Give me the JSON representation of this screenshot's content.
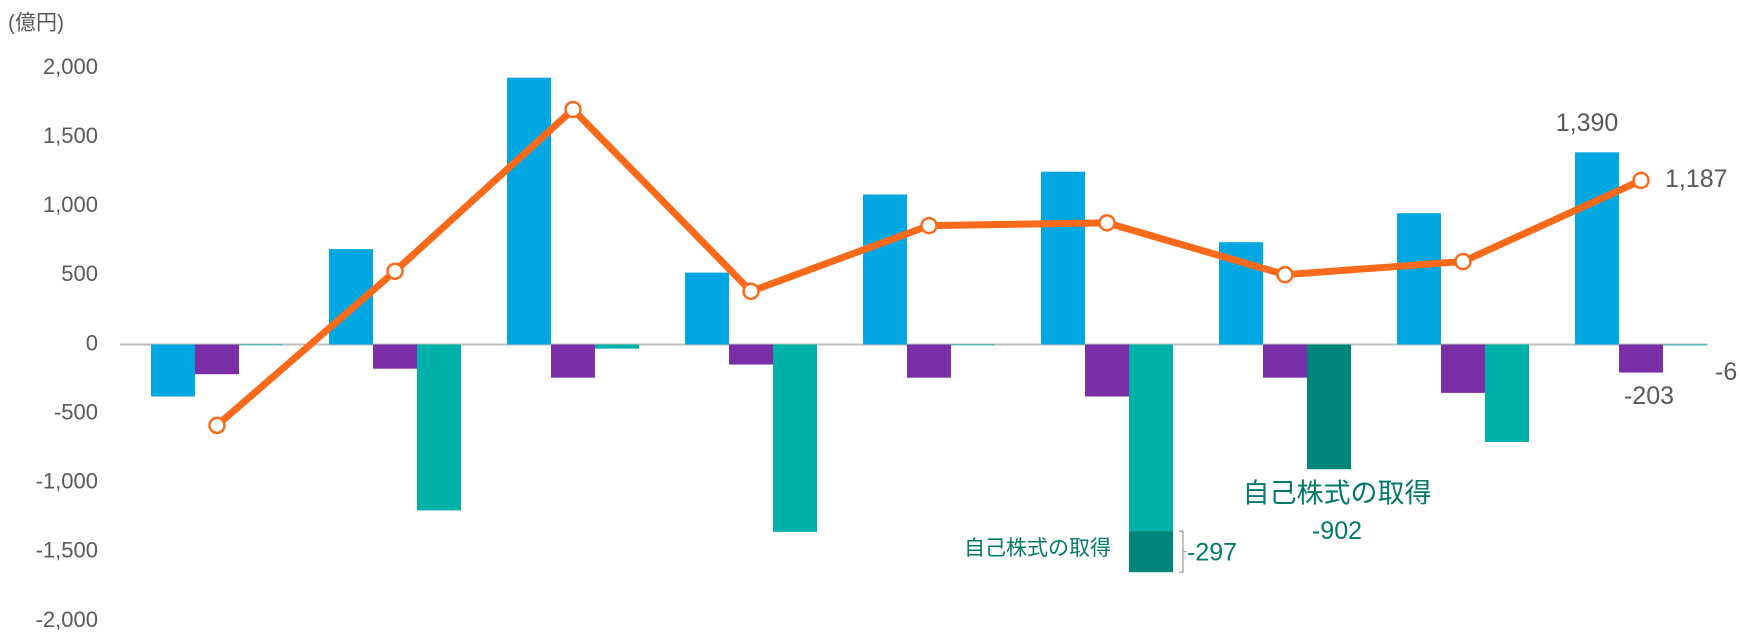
{
  "chart_data": {
    "type": "bar_line",
    "y_label": "(億円)",
    "ylim": [
      -2000,
      2000
    ],
    "yticks": [
      {
        "value": -2000,
        "label": "-2,000"
      },
      {
        "value": -1500,
        "label": "-1,500"
      },
      {
        "value": -1000,
        "label": "-1,000"
      },
      -500,
      0,
      500,
      {
        "value": 1000,
        "label": "1,000"
      },
      {
        "value": 1500,
        "label": "1,500"
      },
      {
        "value": 2000,
        "label": "2,000"
      }
    ],
    "series": [
      {
        "kind": "bar",
        "color": "#00a7e1",
        "values": [
          -376,
          690,
          1930,
          520,
          1085,
          1250,
          740,
          950,
          1390
        ],
        "value_labels": [
          null,
          null,
          null,
          null,
          null,
          null,
          null,
          null,
          "1,390"
        ]
      },
      {
        "kind": "bar",
        "color": "#7b2fa6",
        "values": [
          -215,
          -175,
          -240,
          -145,
          -240,
          -376,
          -240,
          -350,
          -203
        ],
        "value_labels": [
          null,
          null,
          null,
          null,
          null,
          null,
          null,
          null,
          "-203"
        ]
      },
      {
        "kind": "bar",
        "color": "#00b1a9",
        "values": [
          -5,
          -1200,
          -30,
          -1355,
          -5,
          -1350,
          null,
          -705,
          -6
        ],
        "value_labels": [
          null,
          null,
          null,
          null,
          null,
          null,
          null,
          null,
          "-6"
        ]
      },
      {
        "kind": "stack",
        "color": "#00857a",
        "values": [
          null,
          null,
          null,
          null,
          null,
          -297,
          -902,
          null,
          null
        ],
        "value_labels": [
          null,
          null,
          null,
          null,
          null,
          "-297",
          "-902",
          null,
          null
        ]
      },
      {
        "kind": "line",
        "color": "#fa6a1a",
        "values": [
          -585,
          530,
          1700,
          385,
          860,
          880,
          505,
          600,
          1187
        ],
        "value_labels": [
          null,
          null,
          null,
          null,
          null,
          null,
          null,
          null,
          "1,187"
        ]
      }
    ],
    "annotations": [
      "自己株式の取得",
      "自己株式の取得"
    ]
  }
}
